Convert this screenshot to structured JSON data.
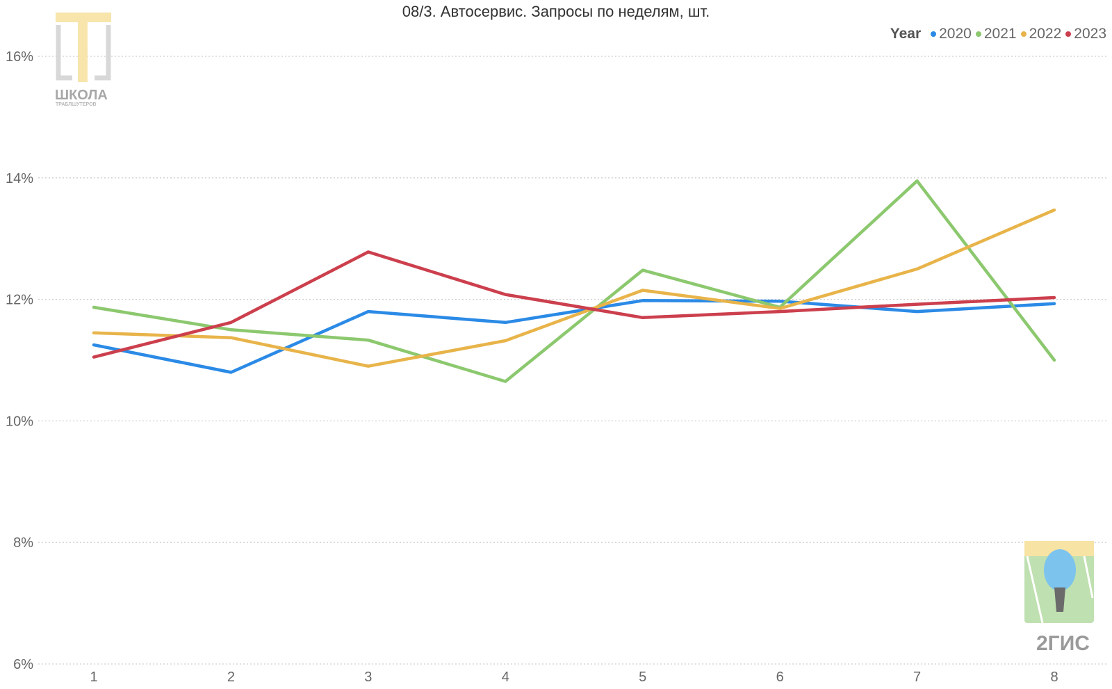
{
  "chart_data": {
    "type": "line",
    "title": "08/3. Автосервис. Запросы по неделям, шт.",
    "legend_title": "Year",
    "legend_position": "top-right",
    "categories": [
      "1",
      "2",
      "3",
      "4",
      "5",
      "6",
      "7",
      "8"
    ],
    "ylim": [
      6,
      16.5
    ],
    "y_ticks": [
      6,
      8,
      10,
      12,
      14,
      16
    ],
    "y_tick_labels": [
      "6%",
      "8%",
      "10%",
      "12%",
      "14%",
      "16%"
    ],
    "grid": true,
    "series": [
      {
        "name": "2020",
        "color": "#2b8ae6",
        "values": [
          11.25,
          10.8,
          11.8,
          11.62,
          11.98,
          11.97,
          11.8,
          11.93
        ]
      },
      {
        "name": "2021",
        "color": "#8cc86e",
        "values": [
          11.87,
          11.5,
          11.33,
          10.65,
          12.48,
          11.87,
          13.95,
          11.0
        ]
      },
      {
        "name": "2022",
        "color": "#e8b44a",
        "values": [
          11.45,
          11.37,
          10.9,
          11.32,
          12.15,
          11.85,
          12.5,
          13.47
        ]
      },
      {
        "name": "2023",
        "color": "#cc3f4d",
        "values": [
          11.05,
          11.62,
          12.78,
          12.08,
          11.7,
          11.8,
          11.92,
          12.03
        ]
      }
    ]
  },
  "watermarks": {
    "top_left": {
      "line1": "ШКОЛА",
      "line2": "ТРАБЛШУТЕРОВ"
    },
    "bottom_right": {
      "text": "2ГИС"
    }
  }
}
